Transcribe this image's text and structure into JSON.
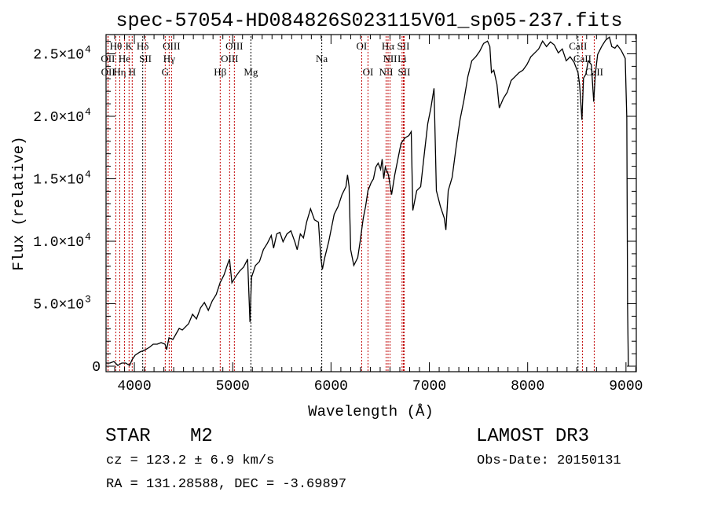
{
  "chart_data": {
    "type": "line",
    "title": "spec-57054-HD084826S023115V01_sp05-237.fits",
    "xlabel": "Wavelength (Å)",
    "ylabel": "Flux (relative)",
    "xlim": [
      3712,
      9105
    ],
    "ylim": [
      -440,
      26540
    ],
    "grid": false,
    "x_ticks": [
      {
        "value": 4000,
        "label": "4000"
      },
      {
        "value": 5000,
        "label": "5000"
      },
      {
        "value": 6000,
        "label": "6000"
      },
      {
        "value": 7000,
        "label": "7000"
      },
      {
        "value": 8000,
        "label": "8000"
      },
      {
        "value": 9000,
        "label": "9000"
      }
    ],
    "x_minor_step": 100,
    "y_ticks": [
      {
        "value": 0,
        "mant": "0",
        "exp": ""
      },
      {
        "value": 5000,
        "mant": "5.0×10",
        "exp": "3"
      },
      {
        "value": 10000,
        "mant": "1.0×10",
        "exp": "4"
      },
      {
        "value": 15000,
        "mant": "1.5×10",
        "exp": "4"
      },
      {
        "value": 20000,
        "mant": "2.0×10",
        "exp": "4"
      },
      {
        "value": 25000,
        "mant": "2.5×10",
        "exp": "4"
      }
    ],
    "y_minor_step": 1000,
    "series": [
      {
        "name": "spectrum",
        "color": "#000000",
        "points": [
          [
            3712,
            252
          ],
          [
            3752,
            252
          ],
          [
            3792,
            378
          ],
          [
            3832,
            63
          ],
          [
            3872,
            252
          ],
          [
            3912,
            252
          ],
          [
            3952,
            63
          ],
          [
            3976,
            504
          ],
          [
            4008,
            882
          ],
          [
            4056,
            1134
          ],
          [
            4112,
            1323
          ],
          [
            4152,
            1512
          ],
          [
            4192,
            1764
          ],
          [
            4232,
            1764
          ],
          [
            4272,
            1890
          ],
          [
            4312,
            1764
          ],
          [
            4328,
            1323
          ],
          [
            4352,
            2268
          ],
          [
            4392,
            2142
          ],
          [
            4456,
            3024
          ],
          [
            4488,
            2898
          ],
          [
            4552,
            3402
          ],
          [
            4592,
            4158
          ],
          [
            4632,
            3780
          ],
          [
            4672,
            4662
          ],
          [
            4712,
            5103
          ],
          [
            4752,
            4473
          ],
          [
            4792,
            5229
          ],
          [
            4832,
            5733
          ],
          [
            4872,
            6678
          ],
          [
            4912,
            7308
          ],
          [
            4952,
            8253
          ],
          [
            4968,
            8568
          ],
          [
            4992,
            6678
          ],
          [
            5032,
            7182
          ],
          [
            5072,
            7623
          ],
          [
            5112,
            7938
          ],
          [
            5152,
            8568
          ],
          [
            5176,
            3528
          ],
          [
            5192,
            7119
          ],
          [
            5232,
            8064
          ],
          [
            5272,
            8379
          ],
          [
            5312,
            9324
          ],
          [
            5352,
            9828
          ],
          [
            5392,
            10458
          ],
          [
            5416,
            9450
          ],
          [
            5448,
            10584
          ],
          [
            5480,
            10710
          ],
          [
            5512,
            9954
          ],
          [
            5552,
            10584
          ],
          [
            5592,
            10836
          ],
          [
            5632,
            9954
          ],
          [
            5656,
            9324
          ],
          [
            5688,
            10584
          ],
          [
            5720,
            10269
          ],
          [
            5752,
            11529
          ],
          [
            5792,
            12600
          ],
          [
            5832,
            11718
          ],
          [
            5872,
            11529
          ],
          [
            5896,
            8694
          ],
          [
            5912,
            7749
          ],
          [
            5936,
            8694
          ],
          [
            5976,
            9954
          ],
          [
            6008,
            11214
          ],
          [
            6032,
            12159
          ],
          [
            6072,
            12789
          ],
          [
            6112,
            13734
          ],
          [
            6152,
            14364
          ],
          [
            6168,
            15309
          ],
          [
            6184,
            14364
          ],
          [
            6200,
            9324
          ],
          [
            6232,
            8064
          ],
          [
            6272,
            8694
          ],
          [
            6296,
            9954
          ],
          [
            6328,
            11844
          ],
          [
            6352,
            12789
          ],
          [
            6376,
            14049
          ],
          [
            6408,
            14679
          ],
          [
            6432,
            14994
          ],
          [
            6456,
            15939
          ],
          [
            6480,
            16254
          ],
          [
            6504,
            15750
          ],
          [
            6520,
            16569
          ],
          [
            6536,
            14994
          ],
          [
            6552,
            15939
          ],
          [
            6584,
            15309
          ],
          [
            6616,
            13734
          ],
          [
            6648,
            15309
          ],
          [
            6680,
            16569
          ],
          [
            6712,
            17829
          ],
          [
            6752,
            18270
          ],
          [
            6792,
            18459
          ],
          [
            6816,
            18774
          ],
          [
            6832,
            12474
          ],
          [
            6872,
            14049
          ],
          [
            6912,
            14364
          ],
          [
            6952,
            17199
          ],
          [
            6984,
            19404
          ],
          [
            7016,
            20664
          ],
          [
            7048,
            22239
          ],
          [
            7072,
            14049
          ],
          [
            7112,
            12789
          ],
          [
            7152,
            11844
          ],
          [
            7168,
            10899
          ],
          [
            7192,
            14049
          ],
          [
            7232,
            15120
          ],
          [
            7272,
            17514
          ],
          [
            7312,
            19719
          ],
          [
            7352,
            21294
          ],
          [
            7392,
            23184
          ],
          [
            7432,
            24444
          ],
          [
            7472,
            24759
          ],
          [
            7512,
            25200
          ],
          [
            7552,
            25830
          ],
          [
            7592,
            26019
          ],
          [
            7616,
            25578
          ],
          [
            7632,
            23499
          ],
          [
            7656,
            23688
          ],
          [
            7688,
            22554
          ],
          [
            7712,
            20664
          ],
          [
            7752,
            21420
          ],
          [
            7792,
            21924
          ],
          [
            7832,
            22869
          ],
          [
            7872,
            23184
          ],
          [
            7912,
            23499
          ],
          [
            7952,
            23688
          ],
          [
            7992,
            24129
          ],
          [
            8032,
            24759
          ],
          [
            8072,
            25074
          ],
          [
            8112,
            25389
          ],
          [
            8152,
            26019
          ],
          [
            8192,
            25578
          ],
          [
            8232,
            25956
          ],
          [
            8272,
            25704
          ],
          [
            8312,
            25074
          ],
          [
            8352,
            25389
          ],
          [
            8392,
            24444
          ],
          [
            8432,
            24759
          ],
          [
            8472,
            24318
          ],
          [
            8512,
            23499
          ],
          [
            8528,
            22554
          ],
          [
            8552,
            19719
          ],
          [
            8568,
            23058
          ],
          [
            8592,
            23373
          ],
          [
            8616,
            24444
          ],
          [
            8648,
            24129
          ],
          [
            8672,
            21168
          ],
          [
            8688,
            23373
          ],
          [
            8712,
            24948
          ],
          [
            8752,
            25578
          ],
          [
            8792,
            26082
          ],
          [
            8832,
            26334
          ],
          [
            8856,
            25578
          ],
          [
            8888,
            25452
          ],
          [
            8912,
            25704
          ],
          [
            8952,
            25263
          ],
          [
            8992,
            24633
          ],
          [
            9008,
            19845
          ],
          [
            9016,
            4725
          ],
          [
            9024,
            0
          ]
        ]
      }
    ],
    "line_markers": [
      {
        "wavelength": 3731,
        "label": "OII",
        "row": 2,
        "color": "#c00000"
      },
      {
        "wavelength": 3733,
        "label": "OII",
        "row": 3,
        "color": "#c00000"
      },
      {
        "wavelength": 3811,
        "label": "Hθ",
        "row": 1,
        "color": "#c00000"
      },
      {
        "wavelength": 3851,
        "label": "Hη",
        "row": 3,
        "color": "#c00000"
      },
      {
        "wavelength": 3899,
        "label": "He",
        "row": 2,
        "color": "#c00000"
      },
      {
        "wavelength": 3946,
        "label": "K",
        "row": 1,
        "color": "#c00000"
      },
      {
        "wavelength": 3978,
        "label": "H",
        "row": 3,
        "color": "#c00000"
      },
      {
        "wavelength": 4085,
        "label": "Hδ",
        "row": 1,
        "color": "#000000"
      },
      {
        "wavelength": 4112,
        "label": "SII",
        "row": 2,
        "color": "#c00000"
      },
      {
        "wavelength": 4314,
        "label": "G",
        "row": 3,
        "color": "#c00000"
      },
      {
        "wavelength": 4354,
        "label": "Hγ",
        "row": 2,
        "color": "#c00000"
      },
      {
        "wavelength": 4378,
        "label": "OIII",
        "row": 1,
        "color": "#c00000"
      },
      {
        "wavelength": 4873,
        "label": "Hβ",
        "row": 3,
        "color": "#c00000"
      },
      {
        "wavelength": 4969,
        "label": "OIII",
        "row": 2,
        "color": "#c00000"
      },
      {
        "wavelength": 5017,
        "label": "OIII",
        "row": 1,
        "color": "#c00000"
      },
      {
        "wavelength": 5185,
        "label": "Mg",
        "row": 3,
        "color": "#000000"
      },
      {
        "wavelength": 5906,
        "label": "Na",
        "row": 2,
        "color": "#000000"
      },
      {
        "wavelength": 6312,
        "label": "OI",
        "row": 1,
        "color": "#c00000"
      },
      {
        "wavelength": 6376,
        "label": "OI",
        "row": 3,
        "color": "#c00000"
      },
      {
        "wavelength": 6560,
        "label": "NII",
        "row": 3,
        "color": "#c00000"
      },
      {
        "wavelength": 6580,
        "label": "Hα",
        "row": 1,
        "color": "#c00000"
      },
      {
        "wavelength": 6600,
        "label": "NII",
        "row": 2,
        "color": "#c00000"
      },
      {
        "wavelength": 6723,
        "label": "Li",
        "row": 2,
        "color": "#c00000"
      },
      {
        "wavelength": 6736,
        "label": "SII",
        "row": 1,
        "color": "#c00000"
      },
      {
        "wavelength": 6744,
        "label": "SII",
        "row": 3,
        "color": "#c00000"
      },
      {
        "wavelength": 8512,
        "label": "CaII",
        "row": 1,
        "color": "#000000"
      },
      {
        "wavelength": 8557,
        "label": "CaII",
        "row": 2,
        "color": "#c00000"
      },
      {
        "wavelength": 8677,
        "label": "CaII",
        "row": 3,
        "color": "#c00000"
      }
    ]
  },
  "info": {
    "class": "STAR",
    "subclass": "M2",
    "redshift": "cz = 123.2 ± 6.9 km/s",
    "coords": "RA = 131.28588, DEC =  -3.69897",
    "survey": "LAMOST DR3",
    "obs_date": "Obs-Date: 20150131"
  }
}
